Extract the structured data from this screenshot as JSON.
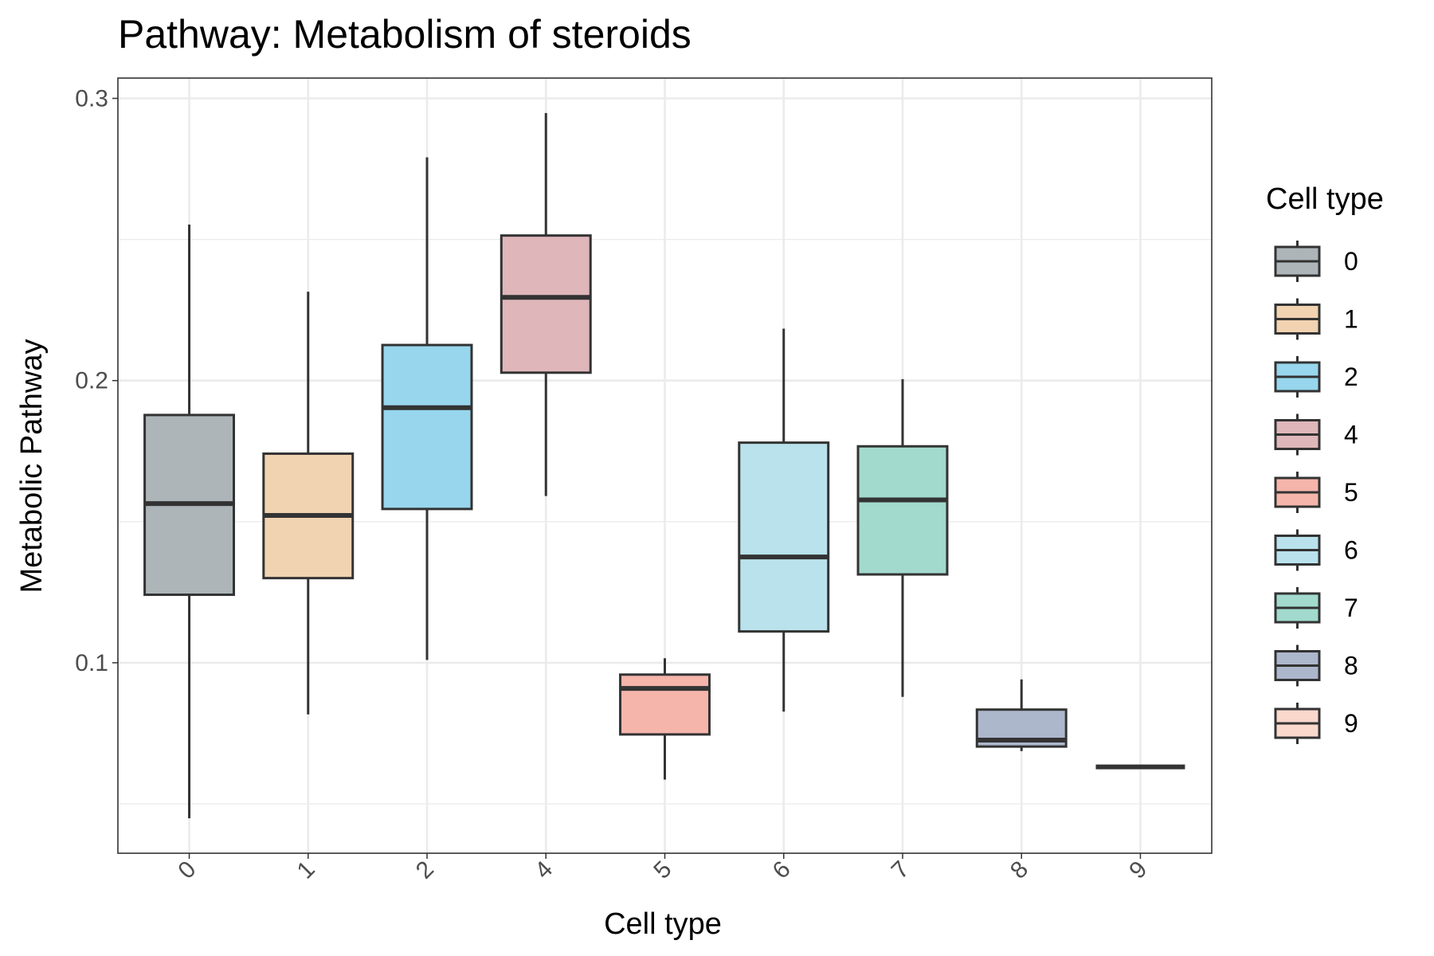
{
  "chart_data": {
    "type": "box",
    "title": "Pathway: Metabolism of steroids",
    "x_label": "Cell type",
    "y_label": "Metabolic Pathway",
    "legend_title": "Cell type",
    "categories": [
      "0",
      "1",
      "2",
      "4",
      "5",
      "6",
      "7",
      "8",
      "9"
    ],
    "colors": [
      "#adb5b9",
      "#f1d2b1",
      "#97d6ed",
      "#dfb6ba",
      "#f5b5ab",
      "#b9e2ec",
      "#a2dacd",
      "#adb7cc",
      "#fad8cc"
    ],
    "whisker_low": [
      0.0449,
      0.0817,
      0.101,
      0.1591,
      0.0586,
      0.0827,
      0.0879,
      0.0687,
      0.0631
    ],
    "q1": [
      0.1241,
      0.13,
      0.1545,
      0.2028,
      0.0746,
      0.1111,
      0.1313,
      0.0703,
      0.0631
    ],
    "median": [
      0.1564,
      0.1522,
      0.1904,
      0.2295,
      0.0909,
      0.1375,
      0.1577,
      0.0726,
      0.0631
    ],
    "q3": [
      0.1878,
      0.1741,
      0.2126,
      0.2514,
      0.0958,
      0.178,
      0.1767,
      0.0834,
      0.0631
    ],
    "whisker_high": [
      0.2553,
      0.2315,
      0.2791,
      0.2948,
      0.1016,
      0.2184,
      0.2005,
      0.0941,
      0.0631
    ],
    "ylim": [
      0.0325,
      0.3072
    ],
    "yticks": [
      0.1,
      0.2,
      0.3
    ],
    "minor_yticks": [
      0.05,
      0.15,
      0.25
    ],
    "grid": true
  }
}
